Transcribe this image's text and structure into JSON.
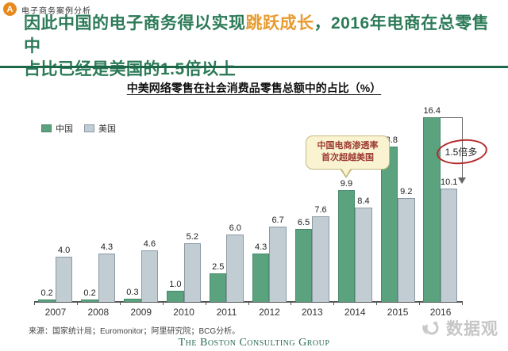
{
  "header": {
    "badge": "A",
    "tag_label": "电子商务案例分析",
    "title_segments": {
      "part1": "因此中国的电子商务得以实现",
      "highlight": "跳跃成长",
      "part2": "，2016年电商在总零售中",
      "line2": "占比已经是美国的1.5倍以上"
    }
  },
  "chart_data": {
    "type": "bar",
    "title": "中美网络零售在社会消费品零售总额中的占比（%）",
    "categories": [
      "2007",
      "2008",
      "2009",
      "2010",
      "2011",
      "2012",
      "2013",
      "2014",
      "2015",
      "2016"
    ],
    "series": [
      {
        "name": "中国",
        "color": "#5ba27f",
        "values": [
          0.2,
          0.2,
          0.3,
          1.0,
          2.5,
          4.3,
          6.5,
          9.9,
          13.8,
          16.4
        ]
      },
      {
        "name": "美国",
        "color": "#c1ccd3",
        "values": [
          4.0,
          4.3,
          4.6,
          5.2,
          6.0,
          6.7,
          7.6,
          8.4,
          9.2,
          10.1
        ]
      }
    ],
    "ylim": [
      0,
      17
    ],
    "grid": false,
    "legend_position": "top-left",
    "annotations": {
      "callout": {
        "line1": "中国电商渗透率",
        "line2": "首次超越美国",
        "target_year": "2014"
      },
      "ratio": {
        "label": "1.5倍多",
        "year": "2016"
      }
    }
  },
  "footer": {
    "source": "来源：国家统计局；Euromonitor；阿里研究院；BCG分析。",
    "brand": "The Boston Consulting Group",
    "watermark": "数据观"
  },
  "colors": {
    "title_green": "#2c7a58",
    "highlight_orange": "#e89b2e",
    "badge_orange": "#e8891d",
    "divider_green": "#1d6848",
    "china_bar": "#5ba27f",
    "china_bar_border": "#47896a",
    "us_bar": "#c1ccd3",
    "us_bar_border": "#8c9aa5",
    "callout_bg": "#f9f3d2",
    "callout_border": "#c5b97e",
    "callout_text": "#9e3b32",
    "ratio_circle_red": "#b22a2a",
    "bcg_green": "#2a6b52",
    "watermark_gray": "#c6c6c6"
  }
}
